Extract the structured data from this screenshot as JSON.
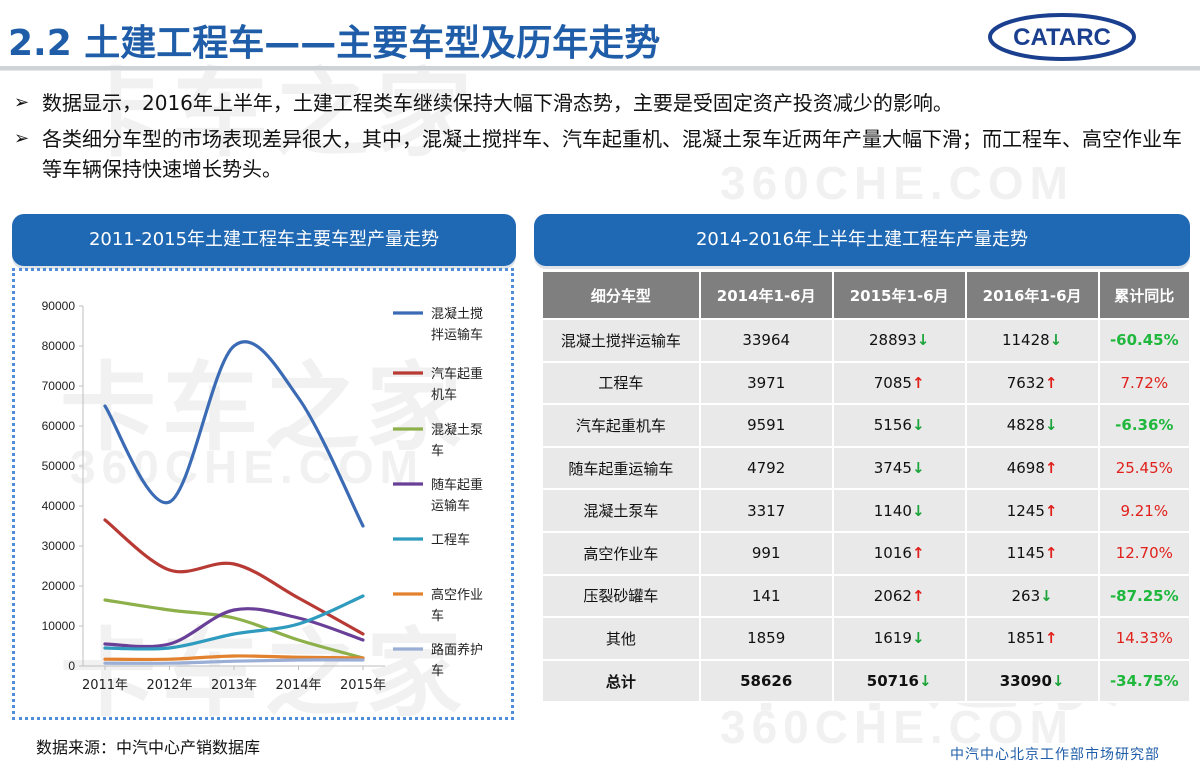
{
  "header": {
    "title": "2.2 土建工程车——主要车型及历年走势",
    "logo_text": "CATARC"
  },
  "watermark": {
    "cn": "卡车之家",
    "en": "360CHE.COM"
  },
  "bullets": [
    "数据显示，2016年上半年，土建工程类车继续保持大幅下滑态势，主要是受固定资产投资减少的影响。",
    "各类细分车型的市场表现差异很大，其中，混凝土搅拌车、汽车起重机、混凝土泵车近两年产量大幅下滑；而工程车、高空作业车等车辆保持快速增长势头。"
  ],
  "left_panel": {
    "title": "2011-2015年土建工程车主要车型产量走势"
  },
  "right_panel": {
    "title": "2014-2016年上半年土建工程车产量走势"
  },
  "chart_data": [
    {
      "type": "line",
      "x": [
        "2011年",
        "2012年",
        "2013年",
        "2014年",
        "2015年"
      ],
      "ylim": [
        0,
        90000
      ],
      "yticks": [
        "0",
        "10000",
        "20000",
        "30000",
        "40000",
        "50000",
        "60000",
        "70000",
        "80000",
        "90000"
      ],
      "legend_position": "right",
      "grid": false,
      "series": [
        {
          "name": "混凝土搅拌运输车",
          "legend": [
            "混凝土搅",
            "拌运输车"
          ],
          "color": "#3a6bb4",
          "values": [
            65000,
            41000,
            80000,
            67000,
            35000
          ]
        },
        {
          "name": "汽车起重机车",
          "legend": [
            "汽车起重",
            "机车"
          ],
          "color": "#b83a35",
          "values": [
            36500,
            24000,
            25500,
            17000,
            8000
          ]
        },
        {
          "name": "混凝土泵车",
          "legend": [
            "混凝土泵",
            "车"
          ],
          "color": "#8db04a",
          "values": [
            16500,
            14000,
            12000,
            6500,
            2000
          ]
        },
        {
          "name": "随车起重运输车",
          "legend": [
            "随车起重",
            "运输车"
          ],
          "color": "#6a3f98",
          "values": [
            5500,
            5500,
            14000,
            12000,
            6500
          ]
        },
        {
          "name": "工程车",
          "legend": [
            "工程车"
          ],
          "color": "#2e9bbf",
          "values": [
            4500,
            4500,
            8000,
            10500,
            17500
          ]
        },
        {
          "name": "高空作业车",
          "legend": [
            "高空作业",
            "车"
          ],
          "color": "#e3822e",
          "values": [
            1700,
            1700,
            2500,
            2200,
            2000
          ]
        },
        {
          "name": "路面养护车",
          "legend": [
            "路面养护",
            "车"
          ],
          "color": "#9aaed6",
          "values": [
            700,
            700,
            1200,
            1500,
            1500
          ]
        }
      ]
    },
    {
      "type": "table",
      "columns": [
        "细分车型",
        "2014年1-6月",
        "2015年1-6月",
        "2016年1-6月",
        "累计同比"
      ],
      "rows": [
        {
          "name": "混凝土搅拌运输车",
          "v2014": "33964",
          "v2015": "28893",
          "t2015": "down",
          "v2016": "11428",
          "t2016": "down",
          "yoy": "-60.45%"
        },
        {
          "name": "工程车",
          "v2014": "3971",
          "v2015": "7085",
          "t2015": "up",
          "v2016": "7632",
          "t2016": "up",
          "yoy": "7.72%"
        },
        {
          "name": "汽车起重机车",
          "v2014": "9591",
          "v2015": "5156",
          "t2015": "down",
          "v2016": "4828",
          "t2016": "down",
          "yoy": "-6.36%"
        },
        {
          "name": "随车起重运输车",
          "v2014": "4792",
          "v2015": "3745",
          "t2015": "down",
          "v2016": "4698",
          "t2016": "up",
          "yoy": "25.45%"
        },
        {
          "name": "混凝土泵车",
          "v2014": "3317",
          "v2015": "1140",
          "t2015": "down",
          "v2016": "1245",
          "t2016": "up",
          "yoy": "9.21%"
        },
        {
          "name": "高空作业车",
          "v2014": "991",
          "v2015": "1016",
          "t2015": "up",
          "v2016": "1145",
          "t2016": "up",
          "yoy": "12.70%"
        },
        {
          "name": "压裂砂罐车",
          "v2014": "141",
          "v2015": "2062",
          "t2015": "up",
          "v2016": "263",
          "t2016": "down",
          "yoy": "-87.25%"
        },
        {
          "name": "其他",
          "v2014": "1859",
          "v2015": "1619",
          "t2015": "down",
          "v2016": "1851",
          "t2016": "up",
          "yoy": "14.33%"
        },
        {
          "name": "总计",
          "v2014": "58626",
          "v2015": "50716",
          "t2015": "down",
          "v2016": "33090",
          "t2016": "down",
          "yoy": "-34.75%",
          "total": true
        }
      ]
    }
  ],
  "trend_symbols": {
    "up": "↑",
    "down": "↓"
  },
  "source": "数据来源：中汽中心产销数据库",
  "footer": "中汽中心北京工作部市场研究部"
}
